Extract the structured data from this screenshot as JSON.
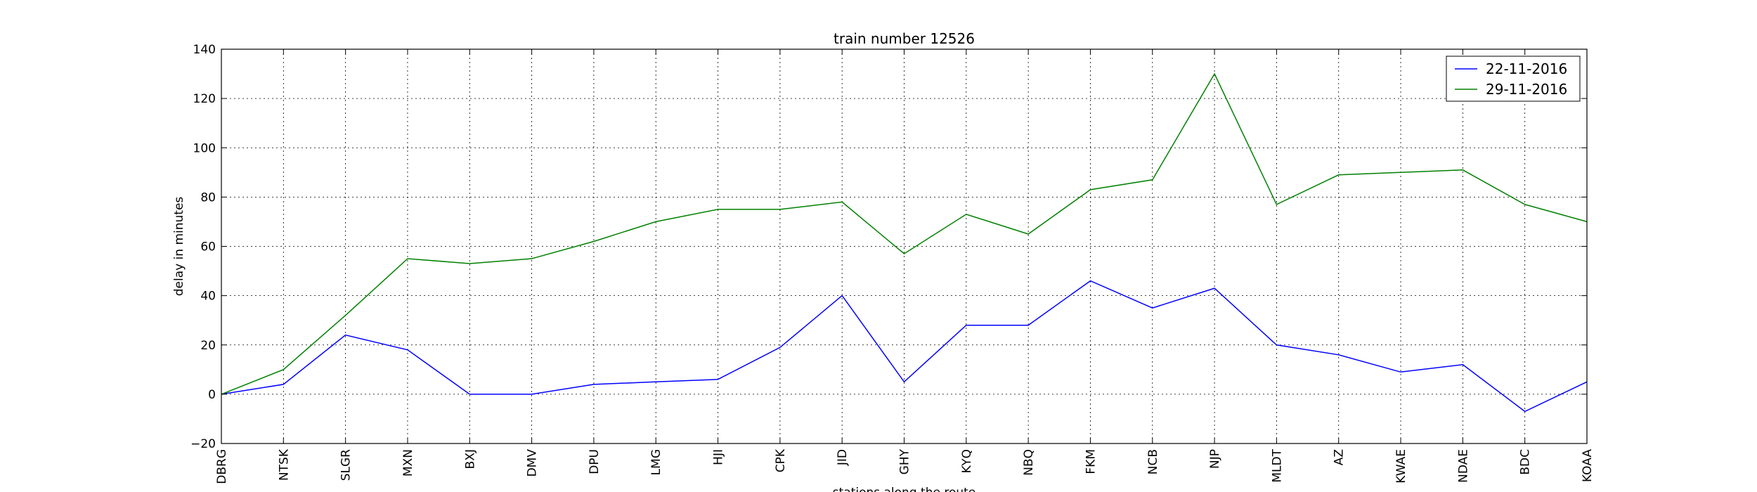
{
  "chart_data": {
    "type": "line",
    "title": "train number 12526",
    "xlabel": "stations along the route",
    "ylabel": "delay in minutes",
    "ylim": [
      -20,
      140
    ],
    "yticks": [
      -20,
      0,
      20,
      40,
      60,
      80,
      100,
      120,
      140
    ],
    "grid": true,
    "legend_position": "top-right",
    "categories": [
      "DBRG",
      "NTSK",
      "SLGR",
      "MXN",
      "BXJ",
      "DMV",
      "DPU",
      "LMG",
      "HJI",
      "CPK",
      "JID",
      "GHY",
      "KYQ",
      "NBQ",
      "FKM",
      "NCB",
      "NJP",
      "MLDT",
      "AZ",
      "KWAE",
      "NDAE",
      "BDC",
      "KOAA"
    ],
    "series": [
      {
        "name": "22-11-2016",
        "color": "#0000ff",
        "values": [
          0,
          4,
          24,
          18,
          0,
          0,
          4,
          5,
          6,
          19,
          40,
          5,
          28,
          28,
          46,
          35,
          43,
          20,
          16,
          9,
          12,
          -7,
          5
        ]
      },
      {
        "name": "29-11-2016",
        "color": "#008000",
        "values": [
          0,
          10,
          32,
          55,
          53,
          55,
          62,
          70,
          75,
          75,
          78,
          57,
          73,
          65,
          83,
          87,
          130,
          77,
          89,
          90,
          91,
          77,
          70
        ]
      }
    ]
  }
}
